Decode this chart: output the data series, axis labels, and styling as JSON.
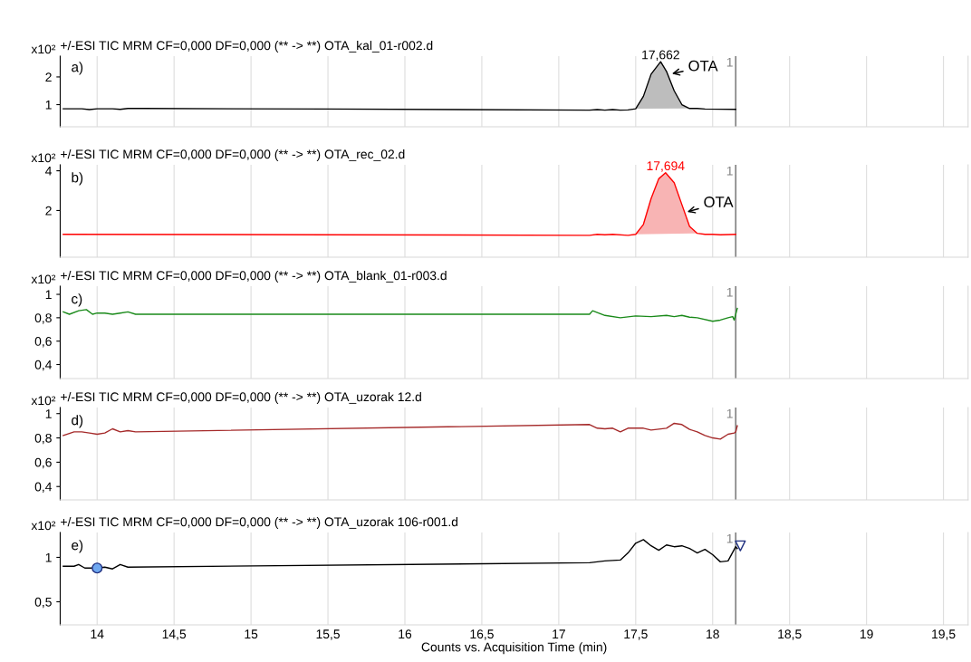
{
  "chart_data": [
    {
      "type": "line",
      "title": "+/-ESI TIC MRM CF=0,000 DF=0,000 (** -> **) OTA_kal_01-r002.d",
      "ylabel": "x10²",
      "xlim": [
        13.76,
        19.66
      ],
      "xticks": [
        14,
        14.5,
        15,
        15.5,
        16,
        16.5,
        17,
        17.5,
        18,
        18.5,
        19,
        19.5
      ],
      "ylim": [
        0.2,
        2.75
      ],
      "yticks": [
        1,
        2
      ],
      "tick_labels": "y",
      "grid": "x",
      "series": [
        {
          "color": "#000000",
          "x": [
            13.78,
            13.9,
            13.95,
            14.0,
            14.1,
            14.15,
            14.2,
            14.3,
            15.5,
            17.2,
            17.25,
            17.3,
            17.35,
            17.4,
            17.45,
            17.5,
            17.55,
            17.6,
            17.662,
            17.7,
            17.75,
            17.8,
            17.85,
            17.9,
            17.95,
            18.15
          ],
          "values": [
            0.85,
            0.85,
            0.82,
            0.85,
            0.85,
            0.83,
            0.86,
            0.86,
            0.84,
            0.8,
            0.82,
            0.8,
            0.82,
            0.8,
            0.81,
            0.85,
            1.3,
            2.1,
            2.55,
            2.2,
            1.5,
            1.0,
            0.86,
            0.86,
            0.84,
            0.83
          ]
        },
        {
          "type": "area",
          "color": "#bdbdbd",
          "x": [
            17.5,
            17.55,
            17.6,
            17.662,
            17.7,
            17.75,
            17.8,
            17.85
          ],
          "values": [
            0.85,
            1.3,
            2.1,
            2.55,
            2.2,
            1.5,
            1.0,
            0.86
          ]
        }
      ],
      "ref_lines": [
        {
          "axis": "x",
          "value": 18.15,
          "color": "#808080"
        }
      ],
      "annotations": [
        "a)",
        {
          "text": "1",
          "x": 18.15
        },
        {
          "text": "17,662",
          "x": 17.662,
          "y": 2.55
        },
        {
          "text": "OTA",
          "x": 17.72,
          "y": 2.1
        }
      ]
    },
    {
      "type": "line",
      "title": "+/-ESI TIC MRM CF=0,000 DF=0,000 (** -> **) OTA_rec_02.d",
      "ylabel": "x10²",
      "xlim": [
        13.76,
        19.66
      ],
      "xticks": [
        14,
        14.5,
        15,
        15.5,
        16,
        16.5,
        17,
        17.5,
        18,
        18.5,
        19,
        19.5
      ],
      "ylim": [
        -0.35,
        4.3
      ],
      "yticks": [
        2,
        4
      ],
      "tick_labels": "y",
      "grid": "x",
      "series": [
        {
          "color": "#ff0000",
          "x": [
            13.78,
            15.5,
            17.2,
            17.25,
            17.3,
            17.35,
            17.45,
            17.5,
            17.55,
            17.6,
            17.65,
            17.694,
            17.75,
            17.8,
            17.85,
            17.9,
            17.95,
            18.0,
            18.05,
            18.15
          ],
          "values": [
            0.8,
            0.78,
            0.75,
            0.8,
            0.78,
            0.8,
            0.75,
            0.8,
            1.3,
            2.6,
            3.6,
            3.9,
            3.4,
            2.3,
            1.2,
            0.85,
            0.8,
            0.8,
            0.78,
            0.8
          ]
        },
        {
          "type": "area",
          "color": "#f8b4b4",
          "x": [
            17.5,
            17.55,
            17.6,
            17.65,
            17.694,
            17.75,
            17.8,
            17.85,
            17.9
          ],
          "values": [
            0.8,
            1.3,
            2.6,
            3.6,
            3.9,
            3.4,
            2.3,
            1.2,
            0.85
          ]
        }
      ],
      "ref_lines": [
        {
          "axis": "x",
          "value": 18.15,
          "color": "#808080"
        }
      ],
      "annotations": [
        "b)",
        {
          "text": "1",
          "x": 18.15
        },
        {
          "text": "17,694",
          "x": 17.694,
          "y": 3.9
        },
        {
          "text": "OTA",
          "x": 17.82,
          "y": 1.9
        }
      ]
    },
    {
      "type": "line",
      "title": "+/-ESI TIC MRM CF=0,000 DF=0,000 (** -> **) OTA_blank_01-r003.d",
      "ylabel": "x10²",
      "xlim": [
        13.76,
        19.66
      ],
      "xticks": [
        14,
        14.5,
        15,
        15.5,
        16,
        16.5,
        17,
        17.5,
        18,
        18.5,
        19,
        19.5
      ],
      "ylim": [
        0.28,
        1.07
      ],
      "yticks": [
        {
          "value": 0.4,
          "label": "0,4"
        },
        {
          "value": 0.6,
          "label": "0,6"
        },
        {
          "value": 0.8,
          "label": "0,8"
        },
        1
      ],
      "tick_labels": "y",
      "grid": "x",
      "series": [
        {
          "color": "#1a8a1a",
          "x": [
            13.78,
            13.82,
            13.88,
            13.93,
            13.97,
            14.0,
            14.05,
            14.1,
            14.15,
            14.2,
            14.25,
            17.2,
            17.22,
            17.3,
            17.4,
            17.5,
            17.6,
            17.7,
            17.75,
            17.8,
            17.85,
            17.9,
            18.0,
            18.05,
            18.1,
            18.13,
            18.14,
            18.16
          ],
          "values": [
            0.85,
            0.83,
            0.86,
            0.87,
            0.83,
            0.84,
            0.84,
            0.83,
            0.84,
            0.85,
            0.83,
            0.83,
            0.86,
            0.82,
            0.8,
            0.815,
            0.81,
            0.82,
            0.81,
            0.82,
            0.805,
            0.8,
            0.77,
            0.78,
            0.8,
            0.81,
            0.78,
            0.88
          ]
        }
      ],
      "ref_lines": [
        {
          "axis": "x",
          "value": 18.15,
          "color": "#808080"
        }
      ],
      "annotations": [
        "c)",
        {
          "text": "1",
          "x": 18.15
        }
      ]
    },
    {
      "type": "line",
      "title": "+/-ESI TIC MRM CF=0,000 DF=0,000 (** -> **) OTA_uzorak 12.d",
      "ylabel": "x10²",
      "xlim": [
        13.76,
        19.66
      ],
      "xticks": [
        14,
        14.5,
        15,
        15.5,
        16,
        16.5,
        17,
        17.5,
        18,
        18.5,
        19,
        19.5
      ],
      "ylim": [
        0.29,
        1.05
      ],
      "yticks": [
        {
          "value": 0.4,
          "label": "0,4"
        },
        {
          "value": 0.6,
          "label": "0,6"
        },
        {
          "value": 0.8,
          "label": "0,8"
        },
        1
      ],
      "tick_labels": "y",
      "grid": "x",
      "series": [
        {
          "color": "#a52a2a",
          "x": [
            13.78,
            13.85,
            13.9,
            13.95,
            14.0,
            14.05,
            14.1,
            14.15,
            14.2,
            14.25,
            17.2,
            17.25,
            17.3,
            17.35,
            17.4,
            17.45,
            17.55,
            17.6,
            17.7,
            17.75,
            17.8,
            17.85,
            17.9,
            17.95,
            18.0,
            18.05,
            18.1,
            18.14,
            18.15,
            18.16
          ],
          "values": [
            0.82,
            0.85,
            0.85,
            0.84,
            0.83,
            0.84,
            0.875,
            0.85,
            0.86,
            0.85,
            0.91,
            0.88,
            0.875,
            0.88,
            0.85,
            0.88,
            0.88,
            0.865,
            0.88,
            0.92,
            0.91,
            0.87,
            0.85,
            0.82,
            0.8,
            0.79,
            0.83,
            0.84,
            0.85,
            0.9
          ]
        }
      ],
      "ref_lines": [
        {
          "axis": "x",
          "value": 18.15,
          "color": "#808080"
        }
      ],
      "annotations": [
        "d)",
        {
          "text": "1",
          "x": 18.15
        }
      ]
    },
    {
      "type": "line",
      "title": "+/-ESI TIC MRM CF=0,000 DF=0,000 (** -> **) OTA_uzorak 106-r001.d",
      "ylabel": "x10²",
      "xlabel": "Counts vs. Acquisition Time (min)",
      "xlim": [
        13.76,
        19.66
      ],
      "xticks": [
        14,
        {
          "value": 14.5,
          "label": "14,5"
        },
        15,
        {
          "value": 15.5,
          "label": "15,5"
        },
        16,
        {
          "value": 16.5,
          "label": "16,5"
        },
        17,
        {
          "value": 17.5,
          "label": "17,5"
        },
        18,
        {
          "value": 18.5,
          "label": "18,5"
        },
        19,
        {
          "value": 19.5,
          "label": "19,5"
        }
      ],
      "ylim": [
        0.24,
        1.28
      ],
      "yticks": [
        {
          "value": 0.5,
          "label": "0,5"
        },
        1
      ],
      "grid": "x",
      "series": [
        {
          "color": "#000000",
          "x": [
            13.78,
            13.85,
            13.88,
            13.92,
            13.97,
            14.0,
            14.05,
            14.1,
            14.15,
            14.2,
            17.2,
            17.25,
            17.3,
            17.4,
            17.45,
            17.5,
            17.55,
            17.6,
            17.65,
            17.7,
            17.75,
            17.8,
            17.85,
            17.9,
            17.95,
            18.0,
            18.05,
            18.1,
            18.15,
            18.16
          ],
          "values": [
            0.9,
            0.9,
            0.92,
            0.88,
            0.88,
            0.88,
            0.89,
            0.87,
            0.92,
            0.89,
            0.94,
            0.95,
            0.96,
            0.97,
            1.05,
            1.16,
            1.2,
            1.13,
            1.08,
            1.14,
            1.12,
            1.13,
            1.1,
            1.05,
            1.09,
            1.03,
            0.95,
            0.96,
            1.12,
            1.1
          ]
        },
        {
          "type": "scatter",
          "color": "#6fa8f0",
          "marker": "circle",
          "x": [
            14.0
          ],
          "values": [
            0.88
          ]
        },
        {
          "type": "scatter",
          "color": "#ffffff",
          "marker": "triangle",
          "x": [
            18.18
          ],
          "values": [
            1.13
          ]
        }
      ],
      "ref_lines": [
        {
          "axis": "x",
          "value": 18.15,
          "color": "#808080"
        }
      ],
      "annotations": [
        "e)",
        {
          "text": "1",
          "x": 18.15
        }
      ]
    }
  ]
}
